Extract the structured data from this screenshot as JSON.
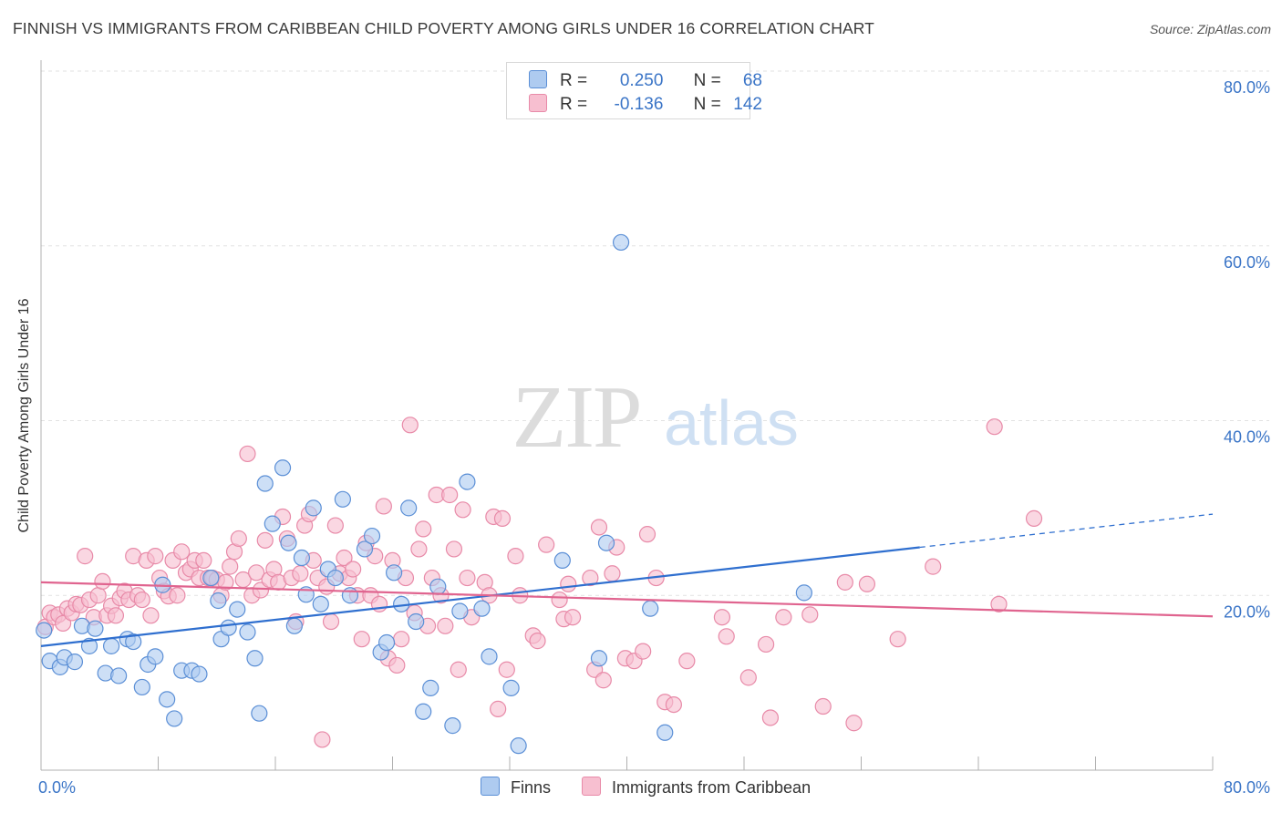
{
  "header": {
    "title": "FINNISH VS IMMIGRANTS FROM CARIBBEAN CHILD POVERTY AMONG GIRLS UNDER 16 CORRELATION CHART",
    "source": "Source: ZipAtlas.com"
  },
  "watermark": {
    "zip": "ZIP",
    "atlas": "atlas"
  },
  "legend": {
    "finns": {
      "r_label": "R =",
      "r_value": "0.250",
      "n_label": "N =",
      "n_value": "68"
    },
    "caribbean": {
      "r_label": "R =",
      "r_value": "-0.136",
      "n_label": "N =",
      "n_value": "142"
    }
  },
  "colors": {
    "finns_fill": "#aecbf0",
    "finns_stroke": "#5b8fd6",
    "finns_line": "#2f6fcf",
    "caribbean_fill": "#f7bfd0",
    "caribbean_stroke": "#e88aa8",
    "caribbean_line": "#e0648f",
    "axis_label": "#3b75c7",
    "grid": "#e2e2e2"
  },
  "chart_data": {
    "type": "scatter",
    "title": "FINNISH VS IMMIGRANTS FROM CARIBBEAN CHILD POVERTY AMONG GIRLS UNDER 16 CORRELATION CHART",
    "xlabel": "",
    "ylabel": "Child Poverty Among Girls Under 16",
    "xlim": [
      0,
      80
    ],
    "ylim": [
      0,
      80
    ],
    "x_tick_labels": [
      "0.0%",
      "80.0%"
    ],
    "y_tick_labels": [
      "20.0%",
      "40.0%",
      "60.0%",
      "80.0%"
    ],
    "y_ticks": [
      20,
      40,
      60,
      80
    ],
    "grid": true,
    "legend_position": "top-center",
    "series": [
      {
        "name": "Finns",
        "points": [
          [
            0.2,
            16
          ],
          [
            0.6,
            12.5
          ],
          [
            1.3,
            11.8
          ],
          [
            1.6,
            12.9
          ],
          [
            2.3,
            12.4
          ],
          [
            2.8,
            16.5
          ],
          [
            3.3,
            14.2
          ],
          [
            3.7,
            16.2
          ],
          [
            4.4,
            11.1
          ],
          [
            4.8,
            14.2
          ],
          [
            5.3,
            10.8
          ],
          [
            5.9,
            15
          ],
          [
            6.3,
            14.7
          ],
          [
            6.9,
            9.5
          ],
          [
            7.3,
            12.1
          ],
          [
            7.8,
            13
          ],
          [
            8.3,
            21.2
          ],
          [
            8.6,
            8.1
          ],
          [
            9.1,
            5.9
          ],
          [
            9.6,
            11.4
          ],
          [
            10.3,
            11.4
          ],
          [
            10.8,
            11
          ],
          [
            11.6,
            22
          ],
          [
            12.1,
            19.4
          ],
          [
            12.3,
            15
          ],
          [
            12.8,
            16.3
          ],
          [
            13.4,
            18.4
          ],
          [
            14.1,
            15.8
          ],
          [
            14.6,
            12.8
          ],
          [
            14.9,
            6.5
          ],
          [
            15.3,
            32.8
          ],
          [
            15.8,
            28.2
          ],
          [
            16.5,
            34.6
          ],
          [
            16.9,
            26
          ],
          [
            17.3,
            16.5
          ],
          [
            17.8,
            24.3
          ],
          [
            18.1,
            20.1
          ],
          [
            18.6,
            30
          ],
          [
            19.1,
            19
          ],
          [
            19.6,
            23
          ],
          [
            20.1,
            22
          ],
          [
            20.6,
            31
          ],
          [
            21.1,
            20
          ],
          [
            22.1,
            25.3
          ],
          [
            22.6,
            26.8
          ],
          [
            23.2,
            13.5
          ],
          [
            23.6,
            14.6
          ],
          [
            24.1,
            22.6
          ],
          [
            24.6,
            19
          ],
          [
            25.1,
            30
          ],
          [
            25.6,
            17
          ],
          [
            26.1,
            6.7
          ],
          [
            26.6,
            9.4
          ],
          [
            27.1,
            21
          ],
          [
            28.1,
            5.1
          ],
          [
            28.6,
            18.2
          ],
          [
            29.1,
            33
          ],
          [
            30.1,
            18.5
          ],
          [
            30.6,
            13
          ],
          [
            32.1,
            9.4
          ],
          [
            32.6,
            2.8
          ],
          [
            35.6,
            24
          ],
          [
            38.1,
            12.8
          ],
          [
            38.6,
            26
          ],
          [
            39.6,
            60.4
          ],
          [
            41.6,
            18.5
          ],
          [
            42.6,
            4.3
          ],
          [
            52.1,
            20.3
          ]
        ]
      },
      {
        "name": "Immigrants from Caribbean",
        "points": [
          [
            0.3,
            16.4
          ],
          [
            0.6,
            18
          ],
          [
            0.9,
            17.5
          ],
          [
            1.2,
            17.8
          ],
          [
            1.5,
            16.8
          ],
          [
            1.8,
            18.5
          ],
          [
            2.1,
            18
          ],
          [
            2.4,
            19
          ],
          [
            2.7,
            18.9
          ],
          [
            3,
            24.5
          ],
          [
            3.3,
            19.5
          ],
          [
            3.6,
            17.5
          ],
          [
            3.9,
            20
          ],
          [
            4.2,
            21.6
          ],
          [
            4.5,
            17.7
          ],
          [
            4.8,
            18.8
          ],
          [
            5.1,
            17.7
          ],
          [
            5.4,
            19.7
          ],
          [
            5.7,
            20.5
          ],
          [
            6,
            19.5
          ],
          [
            6.3,
            24.5
          ],
          [
            6.6,
            20
          ],
          [
            6.9,
            19.5
          ],
          [
            7.2,
            24
          ],
          [
            7.5,
            17.7
          ],
          [
            7.8,
            24.5
          ],
          [
            8.1,
            22
          ],
          [
            8.4,
            20.5
          ],
          [
            8.7,
            19.9
          ],
          [
            9,
            24
          ],
          [
            9.3,
            20
          ],
          [
            9.6,
            25
          ],
          [
            9.9,
            22.6
          ],
          [
            10.2,
            23
          ],
          [
            10.5,
            24
          ],
          [
            10.8,
            22
          ],
          [
            11.1,
            24
          ],
          [
            11.4,
            22
          ],
          [
            11.7,
            22
          ],
          [
            12,
            21.8
          ],
          [
            12.3,
            20
          ],
          [
            12.6,
            21.5
          ],
          [
            12.9,
            23.3
          ],
          [
            13.2,
            25
          ],
          [
            13.5,
            26.5
          ],
          [
            13.8,
            21.8
          ],
          [
            14.1,
            36.2
          ],
          [
            14.4,
            20
          ],
          [
            14.7,
            22.6
          ],
          [
            15,
            20.6
          ],
          [
            15.3,
            26.3
          ],
          [
            15.6,
            21.8
          ],
          [
            15.9,
            23
          ],
          [
            16.2,
            21.5
          ],
          [
            16.5,
            29
          ],
          [
            16.8,
            26.5
          ],
          [
            17.1,
            22
          ],
          [
            17.4,
            17
          ],
          [
            17.7,
            22.5
          ],
          [
            18,
            28
          ],
          [
            18.3,
            29.3
          ],
          [
            18.6,
            24
          ],
          [
            18.9,
            22
          ],
          [
            19.2,
            3.5
          ],
          [
            19.5,
            21
          ],
          [
            19.8,
            17
          ],
          [
            20.1,
            28
          ],
          [
            20.4,
            22.5
          ],
          [
            20.7,
            24.3
          ],
          [
            21,
            22
          ],
          [
            21.3,
            23
          ],
          [
            21.6,
            20
          ],
          [
            21.9,
            15
          ],
          [
            22.2,
            26
          ],
          [
            22.5,
            20
          ],
          [
            22.8,
            24.5
          ],
          [
            23.1,
            19
          ],
          [
            23.4,
            30.2
          ],
          [
            23.7,
            12.8
          ],
          [
            24,
            24
          ],
          [
            24.3,
            12
          ],
          [
            24.6,
            15
          ],
          [
            24.9,
            22
          ],
          [
            25.2,
            39.5
          ],
          [
            25.5,
            18
          ],
          [
            25.8,
            25.3
          ],
          [
            26.1,
            27.6
          ],
          [
            26.4,
            16.5
          ],
          [
            26.7,
            22
          ],
          [
            27,
            31.5
          ],
          [
            27.3,
            20
          ],
          [
            27.6,
            16.5
          ],
          [
            27.9,
            31.5
          ],
          [
            28.2,
            25.3
          ],
          [
            28.5,
            11.5
          ],
          [
            28.8,
            29.8
          ],
          [
            29.1,
            22
          ],
          [
            29.4,
            17.5
          ],
          [
            30.3,
            21.5
          ],
          [
            30.6,
            20
          ],
          [
            30.9,
            29
          ],
          [
            31.2,
            7
          ],
          [
            31.5,
            28.8
          ],
          [
            31.8,
            11.5
          ],
          [
            32.4,
            24.5
          ],
          [
            32.7,
            20
          ],
          [
            33.6,
            15.4
          ],
          [
            33.9,
            14.8
          ],
          [
            34.5,
            25.8
          ],
          [
            35.4,
            19.5
          ],
          [
            35.7,
            17.3
          ],
          [
            36,
            21.3
          ],
          [
            36.3,
            17.5
          ],
          [
            37.5,
            22
          ],
          [
            37.8,
            11.5
          ],
          [
            38.1,
            27.8
          ],
          [
            38.4,
            10.3
          ],
          [
            39,
            22.5
          ],
          [
            39.3,
            25.5
          ],
          [
            39.9,
            12.8
          ],
          [
            40.5,
            12.5
          ],
          [
            41.1,
            13.6
          ],
          [
            41.4,
            27
          ],
          [
            42,
            22
          ],
          [
            42.6,
            7.8
          ],
          [
            43.2,
            7.5
          ],
          [
            44.1,
            12.5
          ],
          [
            46.5,
            17.5
          ],
          [
            46.8,
            15.3
          ],
          [
            48.3,
            10.6
          ],
          [
            49.5,
            14.4
          ],
          [
            49.8,
            6
          ],
          [
            50.7,
            17.5
          ],
          [
            52.5,
            17.8
          ],
          [
            53.4,
            7.3
          ],
          [
            54.9,
            21.5
          ],
          [
            55.5,
            5.4
          ],
          [
            56.4,
            21.3
          ],
          [
            58.5,
            15
          ],
          [
            60.9,
            23.3
          ],
          [
            65.1,
            39.3
          ],
          [
            65.4,
            19
          ],
          [
            67.8,
            28.8
          ]
        ]
      }
    ],
    "trend_lines": [
      {
        "name": "Finns",
        "x": [
          0,
          60
        ],
        "y": [
          14.2,
          25.5
        ],
        "dashed_to": [
          80,
          29.3
        ]
      },
      {
        "name": "Immigrants from Caribbean",
        "x": [
          0,
          80
        ],
        "y": [
          21.5,
          17.6
        ]
      }
    ]
  },
  "bottom_legend": {
    "finns": "Finns",
    "caribbean": "Immigrants from Caribbean"
  }
}
